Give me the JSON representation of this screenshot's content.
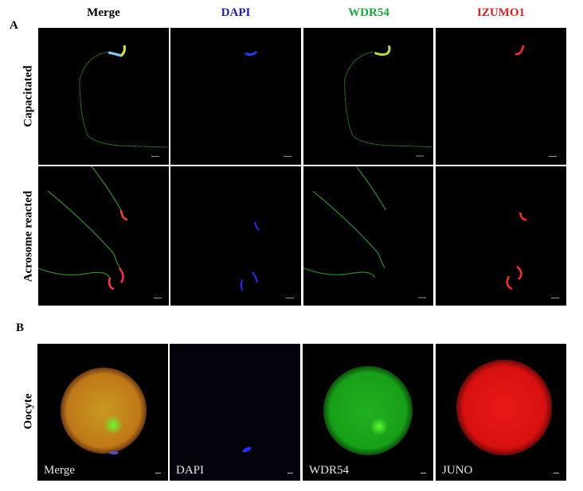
{
  "panel_a": {
    "label": "A",
    "columns": [
      {
        "title": "Merge",
        "color": "#000000"
      },
      {
        "title": "DAPI",
        "color": "#1a1acc"
      },
      {
        "title": "WDR54",
        "color": "#1aa83a"
      },
      {
        "title": "IZUMO1",
        "color": "#e02020"
      }
    ],
    "rows": [
      "Capacitated",
      "Acrosome reacted"
    ]
  },
  "panel_b": {
    "label": "B",
    "row": "Oocyte",
    "images": [
      "Merge",
      "DAPI",
      "WDR54",
      "JUNO"
    ]
  }
}
